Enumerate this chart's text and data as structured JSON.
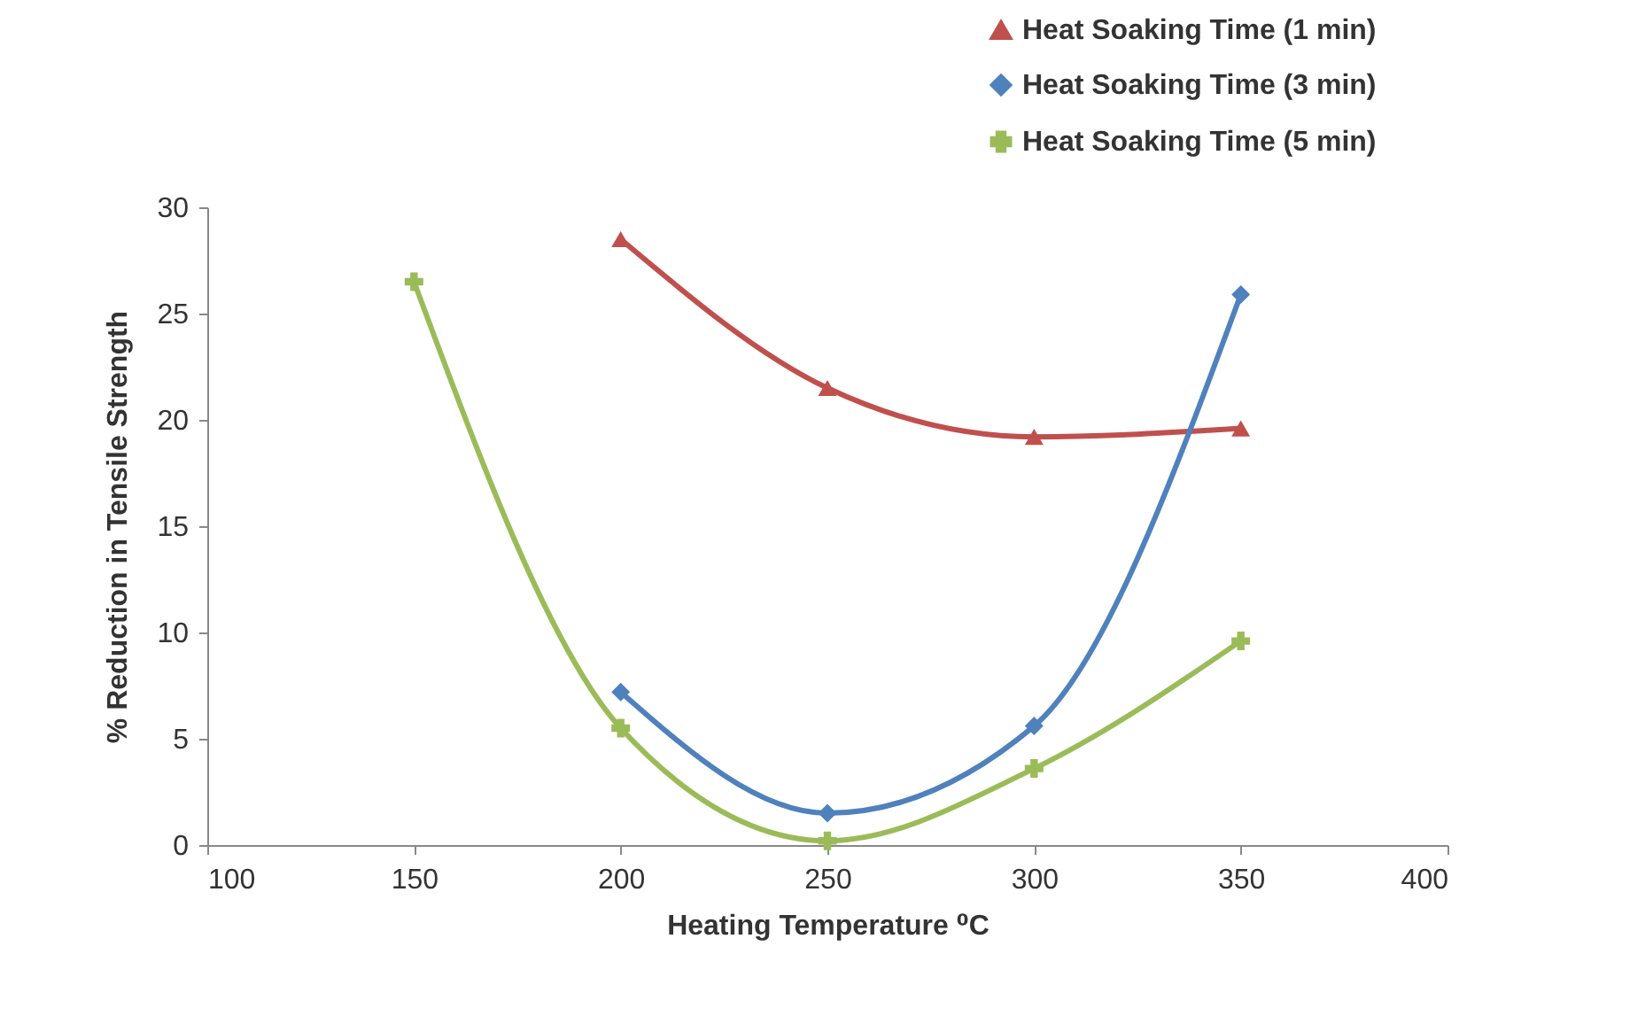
{
  "chart_data": {
    "type": "line",
    "xlabel": "Heating Temperature ⁰C",
    "ylabel": "% Reduction in Tensile Strength",
    "x": [
      150,
      200,
      250,
      300,
      350
    ],
    "series": [
      {
        "name": "Heat Soaking Time (1 min)",
        "color": "#c0504d",
        "marker": "triangle",
        "values": [
          null,
          28.5,
          21.5,
          19.2,
          19.6
        ]
      },
      {
        "name": "Heat Soaking Time (3 min)",
        "color": "#4f81bd",
        "marker": "diamond",
        "values": [
          null,
          7.2,
          1.5,
          5.6,
          25.9
        ]
      },
      {
        "name": "Heat Soaking Time (5 min)",
        "color": "#9bbb59",
        "marker": "cross",
        "values": [
          26.5,
          5.5,
          0.2,
          3.6,
          9.6
        ]
      }
    ],
    "xlim": [
      100,
      400
    ],
    "xticks": [
      100,
      150,
      200,
      250,
      300,
      350,
      400
    ],
    "ylim": [
      0,
      30
    ],
    "yticks": [
      0,
      5,
      10,
      15,
      20,
      25,
      30
    ],
    "legend": "top right"
  }
}
